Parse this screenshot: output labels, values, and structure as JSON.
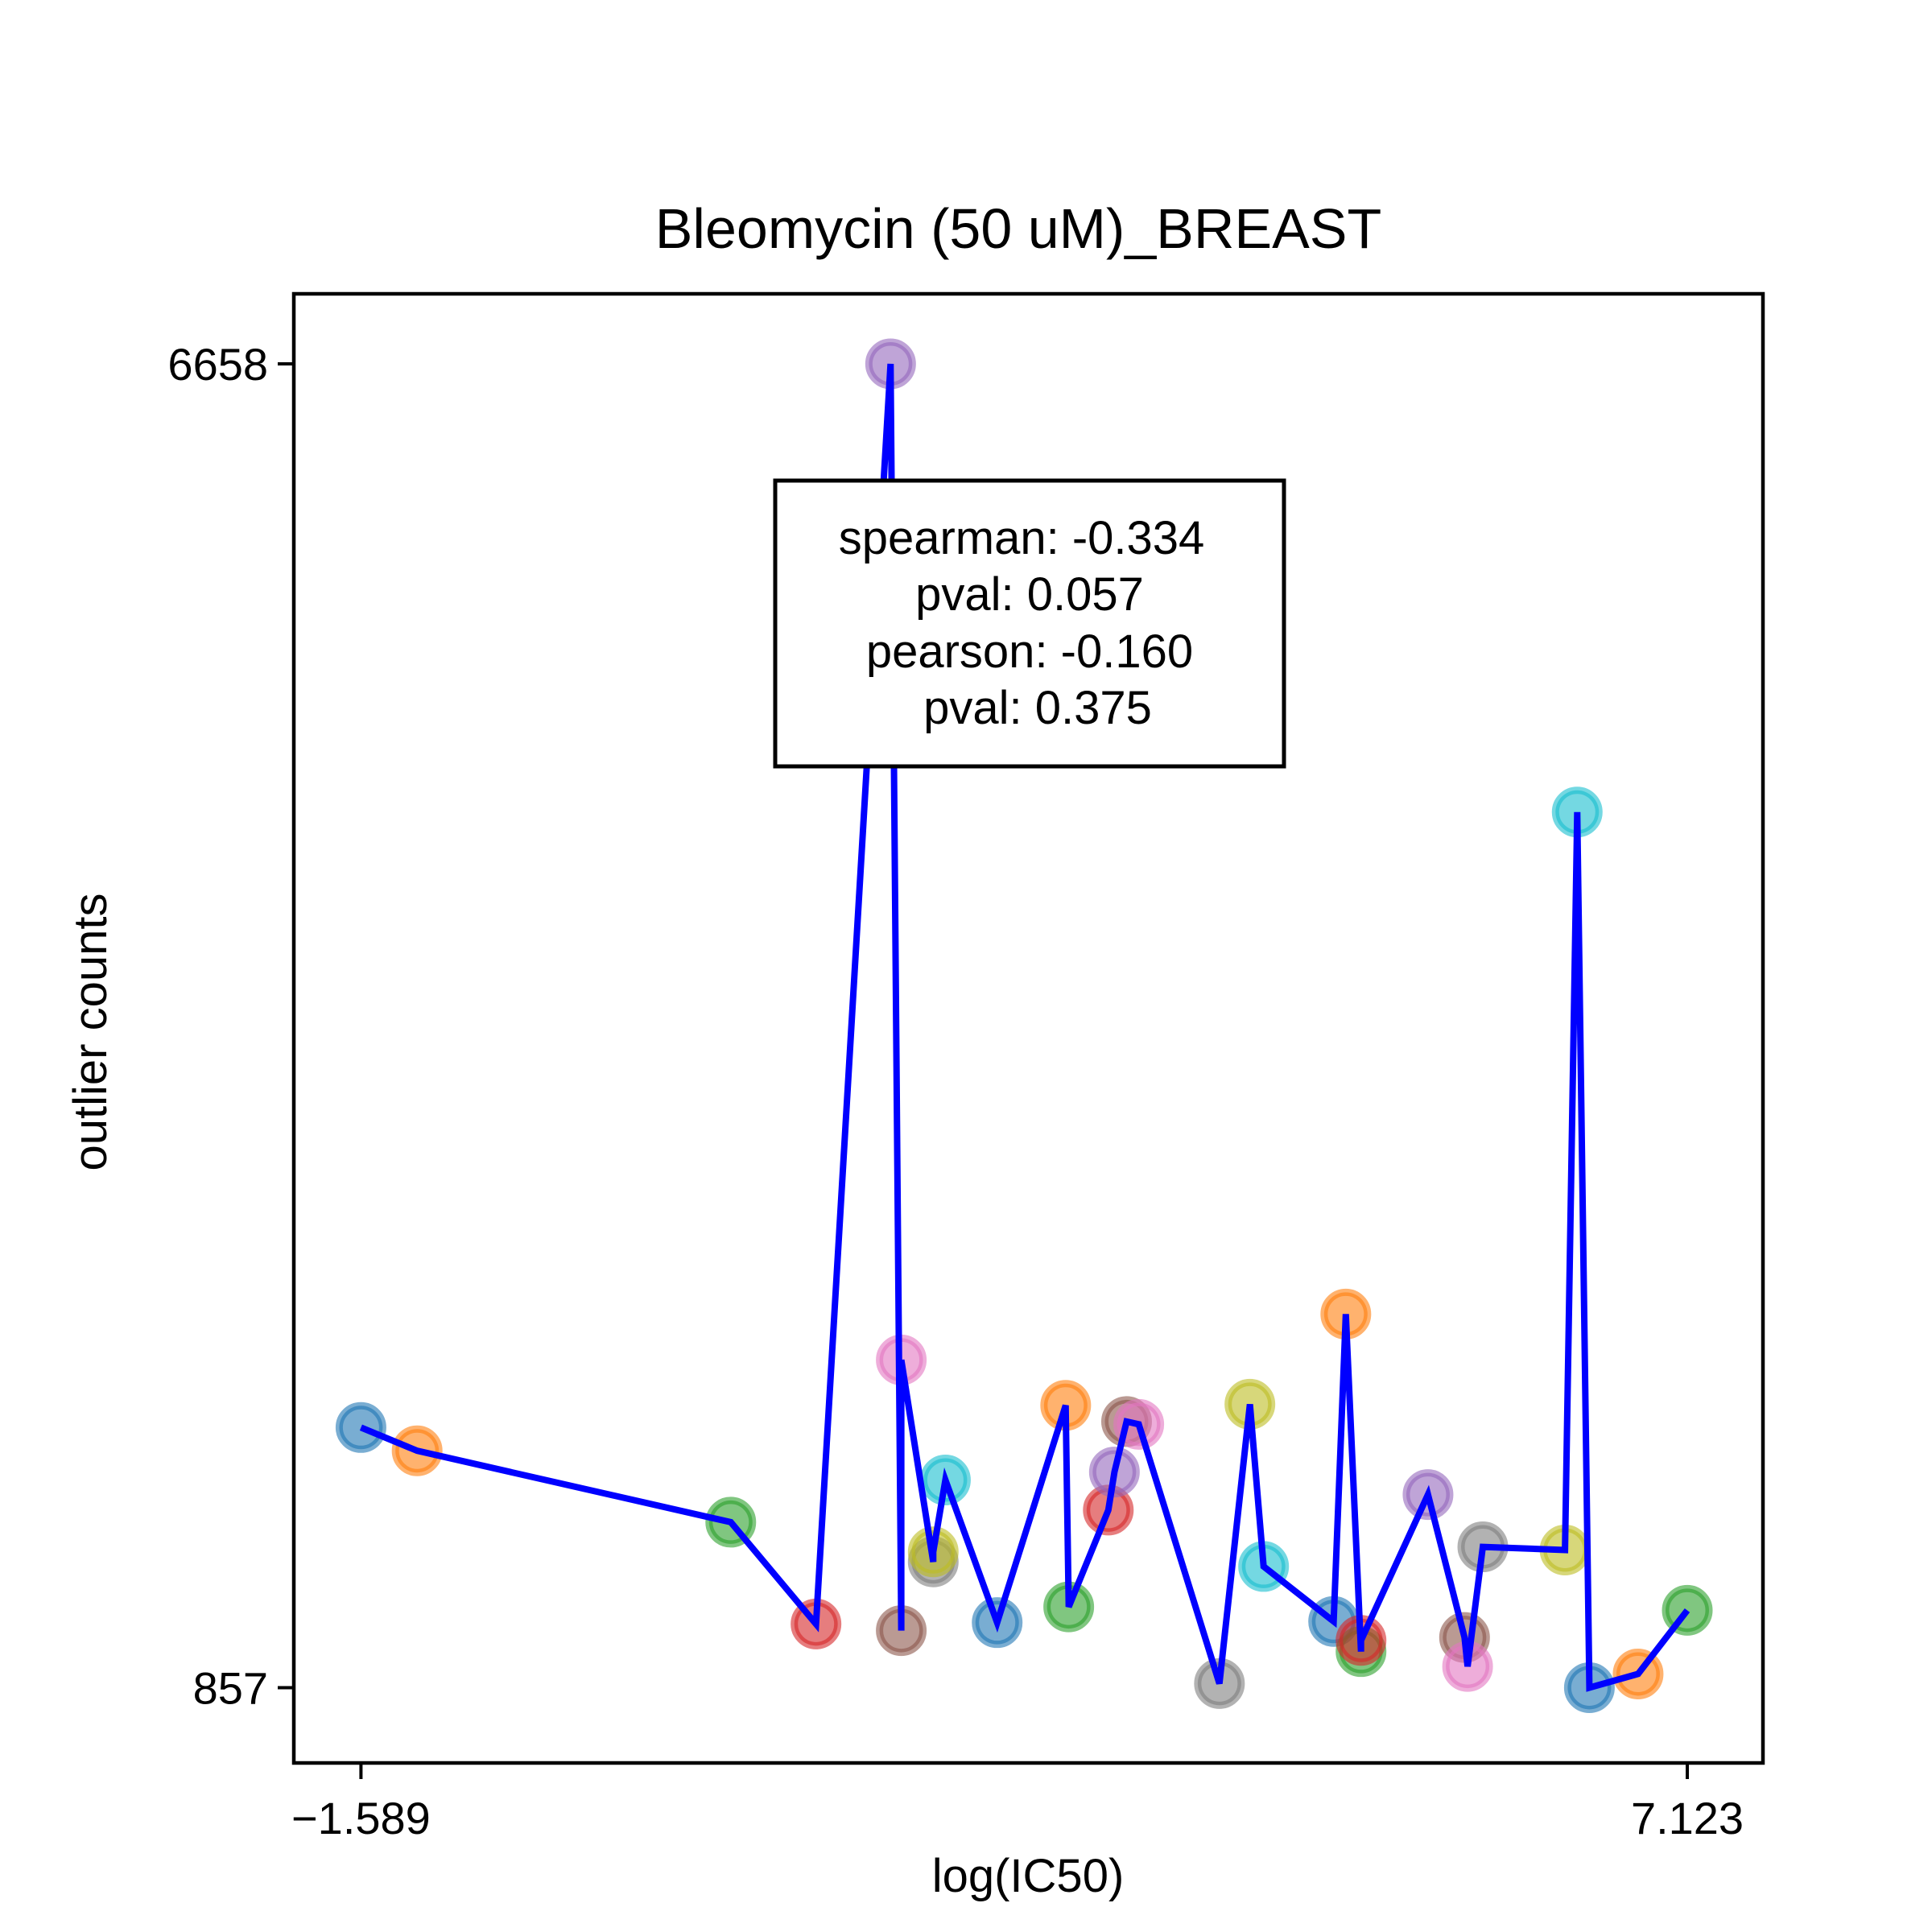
{
  "chart_data": {
    "type": "scatter",
    "title": "Bleomycin (50 uM)_BREAST",
    "xlabel": "log(IC50)",
    "ylabel": "outlier counts",
    "x_ticks": [
      {
        "value": -1.589,
        "label": "−1.589"
      },
      {
        "value": 7.123,
        "label": "7.123"
      }
    ],
    "y_ticks": [
      {
        "value": 857,
        "label": "857"
      },
      {
        "value": 6658,
        "label": "6658"
      }
    ],
    "xlim": [
      -2.03,
      7.62
    ],
    "ylim": [
      527,
      6965
    ],
    "grid": false,
    "annotation": {
      "lines": [
        "spearman: -0.334",
        "pval: 0.057",
        "pearson: -0.160",
        "pval: 0.375"
      ]
    },
    "line_color": "#0000ff",
    "points": [
      {
        "x": -1.589,
        "y": 1997,
        "color": "#1f77b4"
      },
      {
        "x": -1.22,
        "y": 1895,
        "color": "#ff7f0e"
      },
      {
        "x": 0.84,
        "y": 1582,
        "color": "#2ca02c"
      },
      {
        "x": 1.4,
        "y": 1136,
        "color": "#d62728"
      },
      {
        "x": 1.89,
        "y": 6658,
        "color": "#9467bd"
      },
      {
        "x": 1.96,
        "y": 1107,
        "color": "#8c564b"
      },
      {
        "x": 1.96,
        "y": 2293,
        "color": "#e377c2"
      },
      {
        "x": 2.17,
        "y": 1408,
        "color": "#7f7f7f"
      },
      {
        "x": 2.17,
        "y": 1452,
        "color": "#bcbd22"
      },
      {
        "x": 2.25,
        "y": 1767,
        "color": "#17becf"
      },
      {
        "x": 2.59,
        "y": 1142,
        "color": "#1f77b4"
      },
      {
        "x": 3.04,
        "y": 2094,
        "color": "#ff7f0e"
      },
      {
        "x": 3.06,
        "y": 1211,
        "color": "#2ca02c"
      },
      {
        "x": 3.32,
        "y": 1635,
        "color": "#d62728"
      },
      {
        "x": 3.36,
        "y": 1802,
        "color": "#9467bd"
      },
      {
        "x": 3.44,
        "y": 2023,
        "color": "#8c564b"
      },
      {
        "x": 3.52,
        "y": 2011,
        "color": "#e377c2"
      },
      {
        "x": 4.05,
        "y": 875,
        "color": "#7f7f7f"
      },
      {
        "x": 4.25,
        "y": 2099,
        "color": "#bcbd22"
      },
      {
        "x": 4.34,
        "y": 1388,
        "color": "#17becf"
      },
      {
        "x": 4.8,
        "y": 1147,
        "color": "#1f77b4"
      },
      {
        "x": 4.88,
        "y": 2494,
        "color": "#ff7f0e"
      },
      {
        "x": 4.98,
        "y": 1015,
        "color": "#2ca02c"
      },
      {
        "x": 4.98,
        "y": 1064,
        "color": "#d62728"
      },
      {
        "x": 5.42,
        "y": 1703,
        "color": "#9467bd"
      },
      {
        "x": 5.66,
        "y": 1077,
        "color": "#8c564b"
      },
      {
        "x": 5.68,
        "y": 950,
        "color": "#e377c2"
      },
      {
        "x": 5.78,
        "y": 1474,
        "color": "#7f7f7f"
      },
      {
        "x": 6.32,
        "y": 1460,
        "color": "#bcbd22"
      },
      {
        "x": 6.4,
        "y": 4694,
        "color": "#17becf"
      },
      {
        "x": 6.48,
        "y": 857,
        "color": "#1f77b4"
      },
      {
        "x": 6.8,
        "y": 917,
        "color": "#ff7f0e"
      },
      {
        "x": 7.123,
        "y": 1196,
        "color": "#2ca02c"
      }
    ]
  }
}
